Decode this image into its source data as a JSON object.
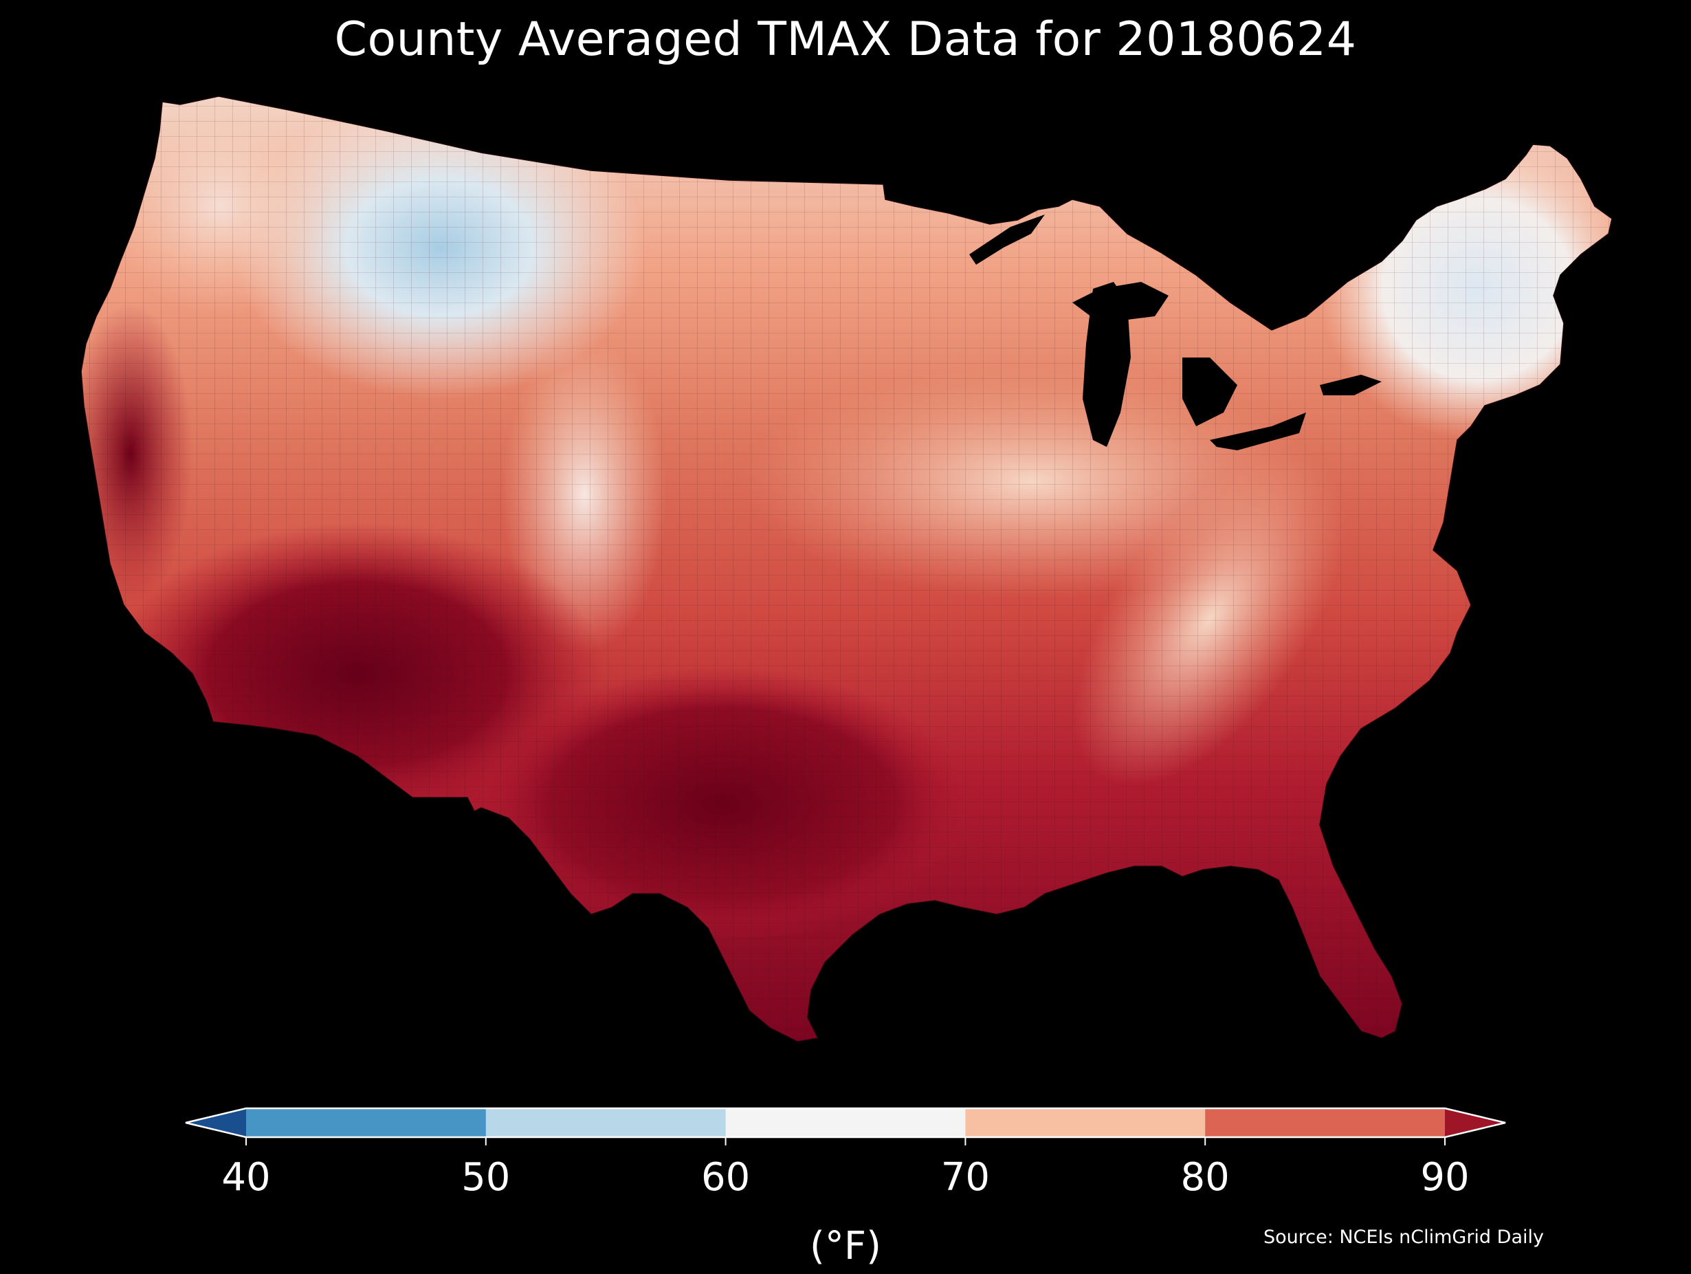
{
  "title": "County Averaged TMAX Data for 20180624",
  "colorbar": {
    "unit": "(°F)",
    "ticks": [
      "40",
      "50",
      "60",
      "70",
      "80",
      "90"
    ],
    "extend": "both",
    "bins": [
      {
        "range": "<40",
        "color": "#1a4f8f"
      },
      {
        "range": "40-50",
        "color": "#4795c4"
      },
      {
        "range": "50-60",
        "color": "#b8d8ea"
      },
      {
        "range": "60-70",
        "color": "#f5f4f4"
      },
      {
        "range": "70-80",
        "color": "#f8c0a2"
      },
      {
        "range": "80-90",
        "color": "#dc6453"
      },
      {
        "range": ">90",
        "color": "#9d1526"
      }
    ]
  },
  "source": "Source: NCEIs nClimGrid Daily",
  "map": {
    "background": "#000000",
    "region": "contiguous United States",
    "gradient_stops": [
      {
        "value": 55,
        "color": "#c8e0ef"
      },
      {
        "value": 62,
        "color": "#f2eeec"
      },
      {
        "value": 70,
        "color": "#f6c4a8"
      },
      {
        "value": 76,
        "color": "#e8846a"
      },
      {
        "value": 82,
        "color": "#d2504a"
      },
      {
        "value": 88,
        "color": "#b0182e"
      },
      {
        "value": 94,
        "color": "#6b0019"
      }
    ]
  }
}
